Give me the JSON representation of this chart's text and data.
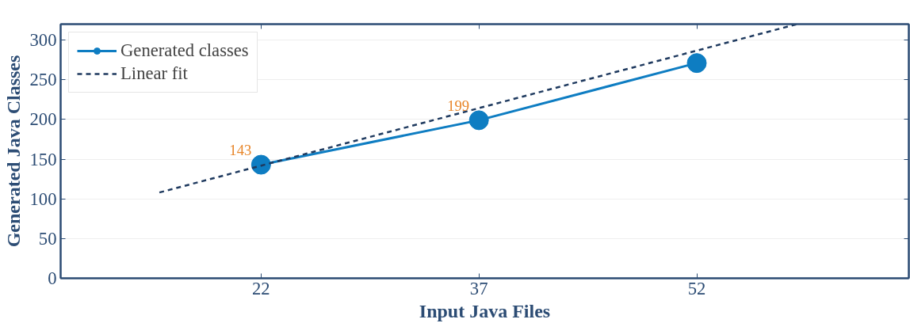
{
  "chart_data": {
    "type": "line",
    "xlabel": "Input Java Files",
    "ylabel": "Generated Java Classes",
    "series": [
      {
        "name": "Generated classes",
        "color": "#0e7dc2",
        "x": [
          22,
          37,
          52
        ],
        "values": [
          143,
          199,
          271
        ],
        "value_labels": [
          "143",
          "199",
          null
        ],
        "marker": "circle",
        "line_style": "solid"
      },
      {
        "name": "Linear fit",
        "type": "line",
        "color": "#1f3a5f",
        "x": [
          15,
          58.9
        ],
        "values": [
          108,
          320
        ],
        "marker": "none",
        "line_style": "dashed"
      }
    ],
    "xlim": [
      8.2,
      66.6
    ],
    "xticks": [
      22,
      37,
      52
    ],
    "ylim": [
      0,
      320
    ],
    "yticks": [
      0,
      50,
      100,
      150,
      200,
      250,
      300
    ],
    "grid": "y",
    "legend": "top left"
  }
}
